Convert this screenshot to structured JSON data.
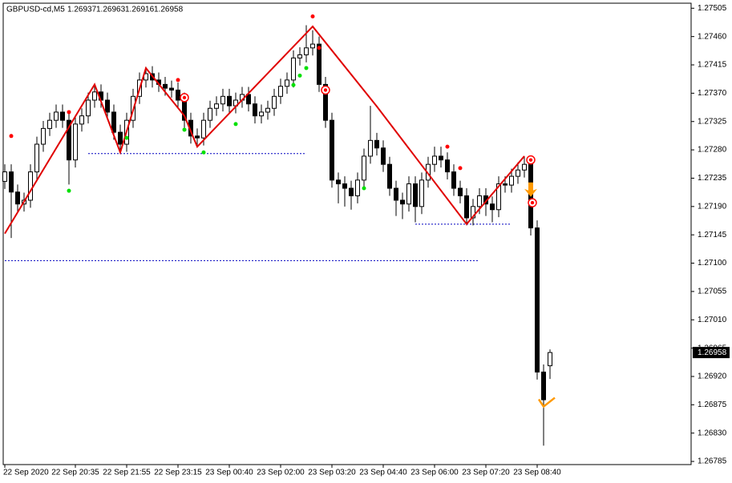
{
  "chart_data": {
    "type": "candlestick",
    "symbol": "GBPUSD-cd,M5",
    "categories": [
      "22 Sep 2020",
      null,
      null,
      null,
      null,
      null,
      null,
      null,
      null,
      null,
      null,
      "22 Sep 20:35",
      null,
      null,
      null,
      null,
      null,
      null,
      null,
      "22 Sep 21:55",
      null,
      null,
      null,
      null,
      null,
      null,
      null,
      "22 Sep 23:15",
      null,
      null,
      null,
      null,
      null,
      null,
      null,
      "23 Sep 00:40",
      null,
      null,
      null,
      null,
      null,
      null,
      null,
      "23 Sep 02:00",
      null,
      null,
      null,
      null,
      null,
      null,
      null,
      "23 Sep 03:20",
      null,
      null,
      null,
      null,
      null,
      null,
      null,
      "23 Sep 04:40",
      null,
      null,
      null,
      null,
      null,
      null,
      null,
      "23 Sep 06:00",
      null,
      null,
      null,
      null,
      null,
      null,
      null,
      "23 Sep 07:20",
      null,
      null,
      null,
      null,
      null,
      null,
      null,
      "23 Sep 08:40",
      null,
      null
    ],
    "open": [
      1.2723,
      1.27245,
      1.27213,
      1.27194,
      1.272,
      1.27245,
      1.27289,
      1.27314,
      1.27327,
      1.2734,
      1.27327,
      1.27264,
      1.27321,
      1.27334,
      1.27359,
      1.27372,
      1.27359,
      1.2734,
      1.27308,
      1.27289,
      1.27327,
      1.27365,
      1.27391,
      1.27401,
      1.27391,
      1.27384,
      1.27378,
      1.27375,
      1.27359,
      1.27327,
      1.27302,
      1.27299,
      1.27327,
      1.27346,
      1.27353,
      1.27365,
      1.2735,
      1.27359,
      1.27368,
      1.27353,
      1.27334,
      1.2734,
      1.27346,
      1.27365,
      1.27381,
      1.27391,
      1.27426,
      1.27431,
      1.27442,
      1.27448,
      1.27384,
      1.27327,
      1.27232,
      1.27226,
      1.27219,
      1.27207,
      1.27232,
      1.2727,
      1.27295,
      1.27283,
      1.27257,
      1.27219,
      1.272,
      1.27194,
      1.27226,
      1.2719,
      1.27232,
      1.27257,
      1.2727,
      1.27264,
      1.27245,
      1.27219,
      1.27207,
      1.27172,
      1.2719,
      1.27207,
      1.27194,
      1.27185,
      1.27226,
      1.27224,
      1.27238,
      1.27248,
      1.27257,
      1.27156,
      1.26927,
      1.26937
    ],
    "high": [
      1.27257,
      1.27257,
      1.27225,
      1.27212,
      1.27257,
      1.27301,
      1.27326,
      1.27339,
      1.27352,
      1.27352,
      1.27339,
      1.27333,
      1.27346,
      1.27371,
      1.27384,
      1.27384,
      1.27371,
      1.27352,
      1.2732,
      1.27339,
      1.27377,
      1.27403,
      1.27412,
      1.27413,
      1.27403,
      1.27396,
      1.2739,
      1.27387,
      1.27371,
      1.27339,
      1.27314,
      1.27339,
      1.27358,
      1.27365,
      1.27377,
      1.27377,
      1.27371,
      1.2738,
      1.2738,
      1.27365,
      1.27352,
      1.27358,
      1.27377,
      1.27393,
      1.27403,
      1.27438,
      1.27443,
      1.27478,
      1.2747,
      1.2746,
      1.27396,
      1.27339,
      1.27244,
      1.27238,
      1.27231,
      1.27244,
      1.27282,
      1.2735,
      1.27307,
      1.27295,
      1.27269,
      1.27231,
      1.27212,
      1.27238,
      1.27238,
      1.27244,
      1.27269,
      1.27285,
      1.27285,
      1.27276,
      1.27257,
      1.27231,
      1.27219,
      1.27202,
      1.27219,
      1.27219,
      1.27206,
      1.27238,
      1.27238,
      1.2725,
      1.2726,
      1.2727,
      1.27269,
      1.27168,
      1.26939,
      1.26963
    ],
    "low": [
      1.27218,
      1.2714,
      1.27182,
      1.27182,
      1.27188,
      1.27233,
      1.27277,
      1.27302,
      1.27315,
      1.27315,
      1.27225,
      1.27252,
      1.27309,
      1.27322,
      1.27347,
      1.27347,
      1.27328,
      1.27296,
      1.27275,
      1.27277,
      1.27315,
      1.27353,
      1.27379,
      1.27379,
      1.27372,
      1.27366,
      1.27363,
      1.27347,
      1.27315,
      1.2729,
      1.27287,
      1.27287,
      1.27315,
      1.27334,
      1.27341,
      1.27338,
      1.27338,
      1.27347,
      1.27341,
      1.27322,
      1.27322,
      1.27328,
      1.27334,
      1.27353,
      1.27369,
      1.27379,
      1.27414,
      1.27419,
      1.2743,
      1.27372,
      1.27315,
      1.2722,
      1.27195,
      1.2719,
      1.27185,
      1.27195,
      1.2722,
      1.27258,
      1.27271,
      1.27245,
      1.27207,
      1.27175,
      1.2717,
      1.27182,
      1.27165,
      1.27178,
      1.2722,
      1.27245,
      1.27252,
      1.27233,
      1.27207,
      1.27195,
      1.2716,
      1.2716,
      1.27178,
      1.27175,
      1.27165,
      1.27173,
      1.27212,
      1.27212,
      1.27226,
      1.27236,
      1.27144,
      1.26915,
      1.2681,
      1.26916
    ],
    "close": [
      1.27245,
      1.27213,
      1.27194,
      1.272,
      1.27245,
      1.27289,
      1.27314,
      1.27327,
      1.2734,
      1.27327,
      1.27264,
      1.27321,
      1.27334,
      1.27359,
      1.27372,
      1.27359,
      1.2734,
      1.27308,
      1.27289,
      1.27327,
      1.27365,
      1.27391,
      1.27401,
      1.27391,
      1.27384,
      1.27378,
      1.27375,
      1.27359,
      1.27327,
      1.27302,
      1.27299,
      1.27327,
      1.27346,
      1.27353,
      1.27365,
      1.2735,
      1.27359,
      1.27368,
      1.27353,
      1.27334,
      1.2734,
      1.27346,
      1.27365,
      1.27381,
      1.27391,
      1.27426,
      1.27431,
      1.27442,
      1.27448,
      1.27384,
      1.27327,
      1.27232,
      1.27226,
      1.27219,
      1.27207,
      1.27232,
      1.2727,
      1.27295,
      1.27283,
      1.27257,
      1.27219,
      1.272,
      1.27194,
      1.27226,
      1.2719,
      1.27232,
      1.27257,
      1.2727,
      1.27264,
      1.27245,
      1.27219,
      1.27207,
      1.27172,
      1.2719,
      1.27207,
      1.27194,
      1.27185,
      1.27226,
      1.27224,
      1.27238,
      1.27248,
      1.27257,
      1.27156,
      1.26927,
      1.26883,
      1.26958
    ],
    "ylim": [
      1.2678,
      1.27513
    ],
    "yticks": [
      {
        "value": 1.27505,
        "label": "1.27505"
      },
      {
        "value": 1.2746,
        "label": "1.27460"
      },
      {
        "value": 1.27415,
        "label": "1.27415"
      },
      {
        "value": 1.2737,
        "label": "1.27370"
      },
      {
        "value": 1.27325,
        "label": "1.27325"
      },
      {
        "value": 1.2728,
        "label": "1.27280"
      },
      {
        "value": 1.27235,
        "label": "1.27235"
      },
      {
        "value": 1.2719,
        "label": "1.27190"
      },
      {
        "value": 1.27145,
        "label": "1.27145"
      },
      {
        "value": 1.271,
        "label": "1.27100"
      },
      {
        "value": 1.27055,
        "label": "1.27055"
      },
      {
        "value": 1.2701,
        "label": "1.27010"
      },
      {
        "value": 1.26965,
        "label": "1.26965"
      },
      {
        "value": 1.2692,
        "label": "1.26920"
      },
      {
        "value": 1.26875,
        "label": "1.26875"
      },
      {
        "value": 1.2683,
        "label": "1.26830"
      },
      {
        "value": 1.26785,
        "label": "1.26785"
      }
    ],
    "grid": false,
    "bull_color": "#ffffff",
    "bear_color": "#000000",
    "outline_color": "#000000",
    "zigzag": {
      "color": "#e00000",
      "index": [
        0,
        14,
        18,
        22,
        28,
        30,
        48,
        58,
        72,
        81
      ],
      "values": [
        1.27147,
        1.27384,
        1.27276,
        1.2741,
        1.27334,
        1.27285,
        1.27476,
        1.27349,
        1.27162,
        1.2727
      ]
    },
    "levels": {
      "color": "#0000c0",
      "values": [
        1.27274,
        1.27162,
        1.27104
      ],
      "from": [
        13,
        64,
        0
      ],
      "to": [
        47,
        79,
        74
      ]
    },
    "fractals_up": {
      "color": "#ff0000",
      "index": [
        1,
        10,
        27,
        48,
        49,
        69,
        71
      ],
      "values": [
        1.27302,
        1.2734,
        1.27391,
        1.27492,
        1.27442,
        1.27285,
        1.27251
      ]
    },
    "fractals_down": {
      "color": "#00e000",
      "index": [
        10,
        19,
        28,
        31,
        36,
        45,
        46,
        47,
        56
      ],
      "values": [
        1.27215,
        1.27299,
        1.27312,
        1.27276,
        1.27321,
        1.27383,
        1.27398,
        1.2741,
        1.27219
      ]
    },
    "targets": {
      "color": "#ff0000",
      "index": [
        28,
        50,
        82,
        82
      ],
      "values": [
        1.27363,
        1.27375,
        1.27264,
        1.27196
      ]
    },
    "arrows_down": {
      "color": "#ff9900",
      "index": [
        82
      ],
      "values": [
        1.27213
      ]
    },
    "checks": {
      "color": "#ff9900",
      "index": [
        84
      ],
      "values": [
        1.26876
      ]
    }
  }
}
